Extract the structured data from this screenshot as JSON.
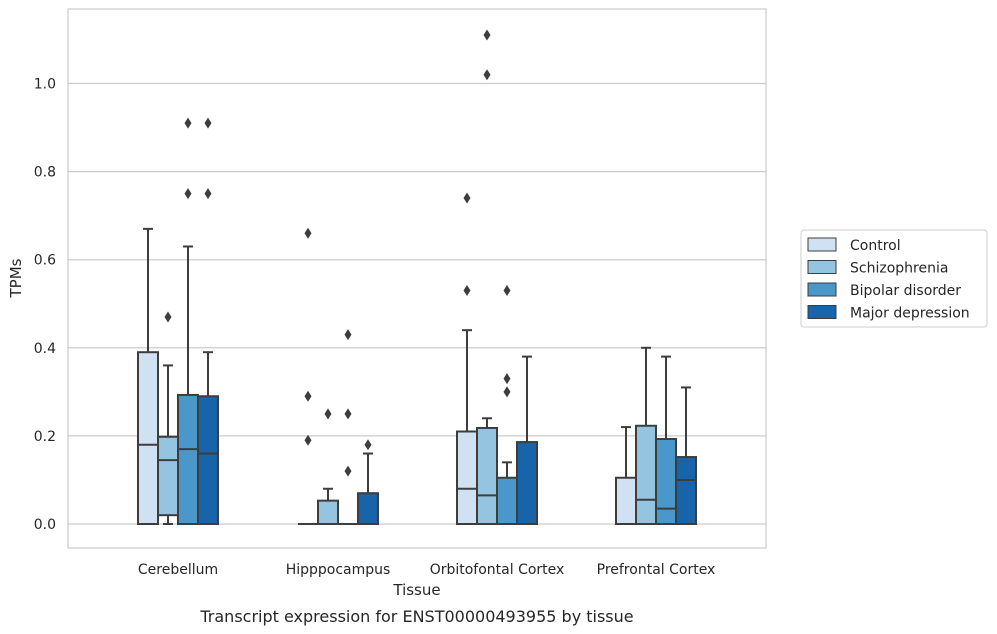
{
  "caption": "Transcript expression for ENST00000493955 by tissue",
  "chart_data": {
    "type": "box",
    "xlabel": "Tissue",
    "ylabel": "TPMs",
    "ylim": [
      -0.053,
      1.17
    ],
    "yticks": [
      0.0,
      0.2,
      0.4,
      0.6,
      0.8,
      1.0
    ],
    "ytick_labels": [
      "0.0",
      "0.2",
      "0.4",
      "0.6",
      "0.8",
      "1.0"
    ],
    "grid": "horizontal",
    "legend_position": "right",
    "categories": [
      "Cerebellum",
      "Hipppocampus",
      "Orbitofontal Cortex",
      "Prefrontal Cortex"
    ],
    "series": [
      {
        "name": "Control",
        "color": "#d0e1f2",
        "boxes": [
          {
            "whislo": 0.0,
            "q1": 0.0,
            "med": 0.18,
            "q3": 0.39,
            "whishi": 0.67,
            "fliers": []
          },
          {
            "whislo": 0.0,
            "q1": 0.0,
            "med": 0.0,
            "q3": 0.0,
            "whishi": 0.0,
            "fliers": [
              0.19,
              0.29,
              0.66
            ]
          },
          {
            "whislo": 0.0,
            "q1": 0.0,
            "med": 0.08,
            "q3": 0.21,
            "whishi": 0.44,
            "fliers": [
              0.53,
              0.74
            ]
          },
          {
            "whislo": 0.0,
            "q1": 0.0,
            "med": 0.0,
            "q3": 0.105,
            "whishi": 0.22,
            "fliers": []
          }
        ]
      },
      {
        "name": "Schizophrenia",
        "color": "#94c4df",
        "boxes": [
          {
            "whislo": 0.0,
            "q1": 0.02,
            "med": 0.145,
            "q3": 0.198,
            "whishi": 0.36,
            "fliers": [
              0.47
            ]
          },
          {
            "whislo": 0.0,
            "q1": 0.0,
            "med": 0.0,
            "q3": 0.053,
            "whishi": 0.08,
            "fliers": [
              0.25
            ]
          },
          {
            "whislo": 0.0,
            "q1": 0.0,
            "med": 0.065,
            "q3": 0.218,
            "whishi": 0.24,
            "fliers": [
              1.02,
              1.11
            ]
          },
          {
            "whislo": 0.0,
            "q1": 0.0,
            "med": 0.055,
            "q3": 0.223,
            "whishi": 0.4,
            "fliers": []
          }
        ]
      },
      {
        "name": "Bipolar disorder",
        "color": "#4a98c9",
        "boxes": [
          {
            "whislo": 0.0,
            "q1": 0.0,
            "med": 0.17,
            "q3": 0.293,
            "whishi": 0.63,
            "fliers": [
              0.75,
              0.91
            ]
          },
          {
            "whislo": 0.0,
            "q1": 0.0,
            "med": 0.0,
            "q3": 0.0,
            "whishi": 0.0,
            "fliers": [
              0.12,
              0.25,
              0.43
            ]
          },
          {
            "whislo": 0.0,
            "q1": 0.0,
            "med": 0.0,
            "q3": 0.105,
            "whishi": 0.14,
            "fliers": [
              0.3,
              0.33,
              0.53
            ]
          },
          {
            "whislo": 0.0,
            "q1": 0.0,
            "med": 0.035,
            "q3": 0.193,
            "whishi": 0.38,
            "fliers": []
          }
        ]
      },
      {
        "name": "Major depression",
        "color": "#1764ab",
        "boxes": [
          {
            "whislo": 0.0,
            "q1": 0.0,
            "med": 0.16,
            "q3": 0.29,
            "whishi": 0.39,
            "fliers": [
              0.75,
              0.91
            ]
          },
          {
            "whislo": 0.0,
            "q1": 0.0,
            "med": 0.0,
            "q3": 0.07,
            "whishi": 0.16,
            "fliers": [
              0.18
            ]
          },
          {
            "whislo": 0.0,
            "q1": 0.0,
            "med": 0.0,
            "q3": 0.186,
            "whishi": 0.38,
            "fliers": []
          },
          {
            "whislo": 0.0,
            "q1": 0.0,
            "med": 0.1,
            "q3": 0.152,
            "whishi": 0.31,
            "fliers": []
          }
        ]
      }
    ]
  }
}
